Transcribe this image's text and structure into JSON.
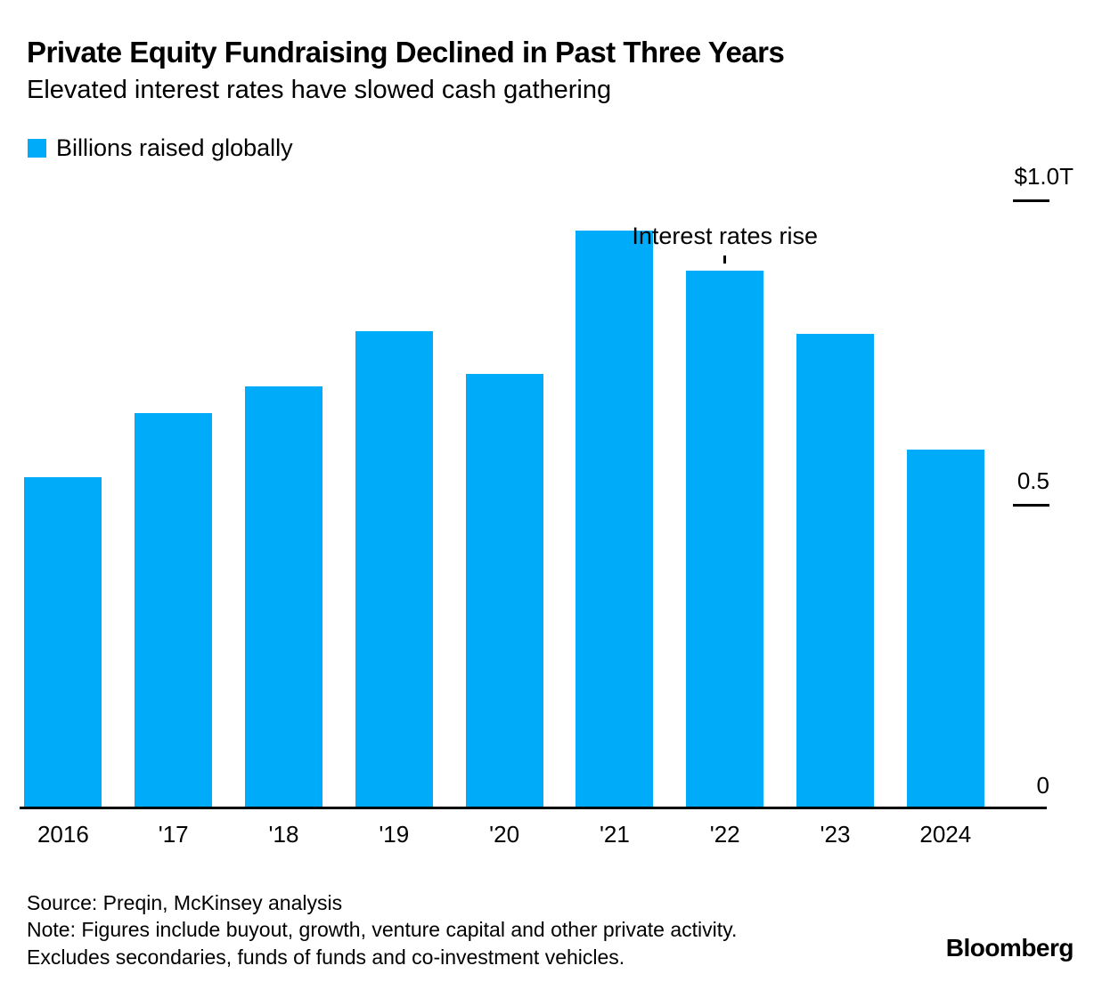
{
  "header": {
    "title": "Private Equity Fundraising Declined in Past Three Years",
    "subtitle": "Elevated interest rates have slowed cash gathering"
  },
  "legend": {
    "label": "Billions raised globally",
    "swatch_color": "#00ACFA"
  },
  "chart_data": {
    "type": "bar",
    "title": "Private Equity Fundraising Declined in Past Three Years",
    "subtitle": "Elevated interest rates have slowed cash gathering",
    "series_name": "Billions raised globally",
    "unit": "USD billions",
    "categories": [
      "2016",
      "'17",
      "'18",
      "'19",
      "'20",
      "'21",
      "'22",
      "'23",
      "2024"
    ],
    "values": [
      545,
      650,
      695,
      785,
      715,
      950,
      885,
      780,
      590
    ],
    "ylim": [
      0,
      1000
    ],
    "grid": false,
    "legend_position": "top-left",
    "bar_color": "#00ACFA",
    "yticks": [
      {
        "label": "$1.0T",
        "value": 1000,
        "tick_line": true
      },
      {
        "label": "0.5",
        "value": 500,
        "tick_line": true
      },
      {
        "label": "0",
        "value": 0,
        "tick_line": false
      }
    ],
    "annotation": {
      "text": "Interest rates rise",
      "target_category": "'22"
    }
  },
  "footer": {
    "source": "Source: Preqin, McKinsey analysis",
    "note": "Note: Figures include buyout, growth, venture capital and other private activity.",
    "note2": "Excludes secondaries, funds of funds and co-investment vehicles.",
    "brand": "Bloomberg"
  }
}
